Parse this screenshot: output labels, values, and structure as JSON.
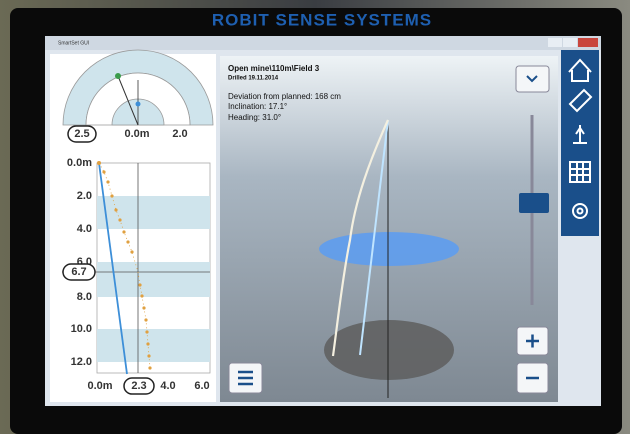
{
  "header": {
    "title": "ROBIT SENSE SYSTEMS"
  },
  "window": {
    "title": "SmartSet GUI"
  },
  "gauge": {
    "labels": [
      "2.5",
      "0.0m",
      "2.0"
    ]
  },
  "depth_plot": {
    "y_labels": [
      "0.0m",
      "2.0",
      "4.0",
      "6.0",
      "8.0",
      "10.0",
      "12.0"
    ],
    "marker": "6.7",
    "x_labels": [
      "0.0m",
      "2.3",
      "4.0",
      "6.0"
    ]
  },
  "info": {
    "path": "Open mine\\110m\\Field 3",
    "date": "Drilled 19.11.2014",
    "lines": [
      "Deviation from planned: 168 cm",
      "Inclination: 17.1°",
      "Heading: 31.0°"
    ]
  }
}
